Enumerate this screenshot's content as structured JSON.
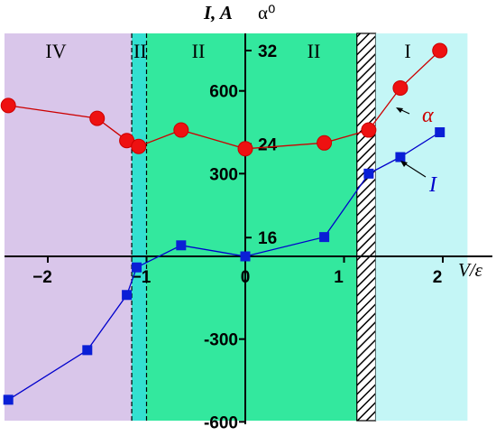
{
  "chart_data": {
    "type": "line",
    "x_axis": {
      "label": "V/ε",
      "ticks": [
        "−2",
        "−1",
        "0",
        "1",
        "2"
      ],
      "tick_values": [
        -2,
        -1,
        0,
        1,
        2
      ],
      "range": [
        -2.5,
        2.25
      ]
    },
    "left_axis": {
      "label": "I, A",
      "ticks": [
        "600",
        "300",
        "-300",
        "-600"
      ],
      "tick_values": [
        600,
        300,
        -300,
        -600
      ],
      "range": [
        -620,
        820
      ]
    },
    "right_axis": {
      "label": "α⁰",
      "ticks": [
        "32",
        "24",
        "16"
      ],
      "tick_values": [
        32,
        24,
        16
      ],
      "range": [
        13,
        37
      ]
    },
    "regions": [
      {
        "label": "IV",
        "x_from": -2.5,
        "x_to": -1.15,
        "color": "#d9c6ea"
      },
      {
        "label": "III",
        "x_from": -1.15,
        "x_to": -1.0,
        "color": "#33e0d0"
      },
      {
        "label": "II",
        "x_from": -1.0,
        "x_to": 0.0,
        "color": "#33e89e"
      },
      {
        "label": "II",
        "x_from": 0.0,
        "x_to": 1.13,
        "color": "#33e89e"
      },
      {
        "label": "",
        "x_from": 1.13,
        "x_to": 1.32,
        "color": "#ffffff",
        "pattern": "hatch"
      },
      {
        "label": "I",
        "x_from": 1.32,
        "x_to": 2.25,
        "color": "#c4f6f6"
      }
    ],
    "series": [
      {
        "name": "α",
        "axis": "right",
        "color": "#cc0000",
        "marker": "circle",
        "x": [
          -2.4,
          -1.5,
          -1.2,
          -1.08,
          -0.65,
          0.0,
          0.8,
          1.25,
          1.57,
          1.97
        ],
        "y": [
          27.3,
          26.2,
          24.3,
          23.8,
          25.2,
          23.6,
          24.1,
          25.2,
          28.8,
          32.0
        ]
      },
      {
        "name": "I",
        "axis": "left",
        "color": "#0000cc",
        "marker": "square",
        "x": [
          -2.4,
          -1.6,
          -1.2,
          -1.1,
          -0.65,
          0.0,
          0.8,
          1.25,
          1.57,
          1.97
        ],
        "y": [
          -520,
          -340,
          -140,
          -40,
          40,
          0,
          70,
          300,
          360,
          450
        ]
      }
    ]
  }
}
